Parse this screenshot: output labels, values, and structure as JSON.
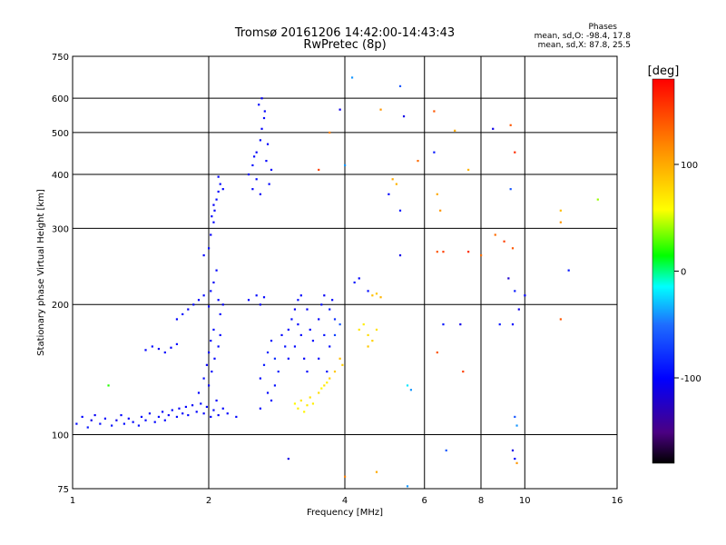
{
  "chart_data": {
    "type": "scatter",
    "title": "Tromsø 20161206 14:42:00-14:43:43",
    "subtitle": "RwPretec (8p)",
    "phase_stats": {
      "heading": "Phases",
      "line1": "mean, sd,O: -98.4, 17.8",
      "line2": "mean, sd,X:  87.8, 25.5"
    },
    "xlabel": "Frequency [MHz]",
    "ylabel": "Stationary phase Virtual Height [km]",
    "x_scale": "log",
    "y_scale": "log",
    "xlim": [
      1,
      16
    ],
    "ylim": [
      75,
      750
    ],
    "x_ticks": [
      1,
      2,
      4,
      6,
      8,
      10,
      16
    ],
    "y_ticks": [
      75,
      100,
      200,
      300,
      400,
      500,
      600,
      750
    ],
    "grid": true,
    "colorbar": {
      "label": "[deg]",
      "range": [
        -180,
        180
      ],
      "ticks": [
        100,
        0,
        -100
      ],
      "colormap": "rainbow"
    },
    "series": [
      {
        "points": [
          [
            1.02,
            106,
            -95
          ],
          [
            1.05,
            110,
            -100
          ],
          [
            1.08,
            104,
            -90
          ],
          [
            1.1,
            108,
            -110
          ],
          [
            1.12,
            111,
            -105
          ],
          [
            1.15,
            106,
            -95
          ],
          [
            1.18,
            109,
            -100
          ],
          [
            1.22,
            105,
            -92
          ],
          [
            1.25,
            108,
            -108
          ],
          [
            1.28,
            111,
            -100
          ],
          [
            1.3,
            106,
            -96
          ],
          [
            1.33,
            109,
            -103
          ],
          [
            1.36,
            107,
            -99
          ],
          [
            1.4,
            105,
            -94
          ],
          [
            1.42,
            110,
            -101
          ],
          [
            1.45,
            108,
            -97
          ],
          [
            1.48,
            112,
            -105
          ],
          [
            1.52,
            107,
            -100
          ],
          [
            1.55,
            110,
            -96
          ],
          [
            1.58,
            113,
            -102
          ],
          [
            1.6,
            108,
            -98
          ],
          [
            1.63,
            111,
            -104
          ],
          [
            1.66,
            114,
            -100
          ],
          [
            1.7,
            110,
            -95
          ],
          [
            1.72,
            115,
            -103
          ],
          [
            1.75,
            112,
            -99
          ],
          [
            1.78,
            116,
            -101
          ],
          [
            1.8,
            111,
            -97
          ],
          [
            1.84,
            117,
            -104
          ],
          [
            1.88,
            113,
            -100
          ],
          [
            1.92,
            118,
            -96
          ],
          [
            1.95,
            112,
            -102
          ],
          [
            1.98,
            116,
            -99
          ],
          [
            2.02,
            110,
            -101
          ],
          [
            2.05,
            114,
            -97
          ],
          [
            2.1,
            111,
            -103
          ],
          [
            2.15,
            115,
            -99
          ],
          [
            2.2,
            112,
            -100
          ],
          [
            2.3,
            110,
            -98
          ],
          [
            1.45,
            157,
            -100
          ],
          [
            1.5,
            160,
            -95
          ],
          [
            1.55,
            158,
            -105
          ],
          [
            1.6,
            155,
            -98
          ],
          [
            1.65,
            159,
            -102
          ],
          [
            1.7,
            162,
            -97
          ],
          [
            1.7,
            185,
            -100
          ],
          [
            1.75,
            190,
            -95
          ],
          [
            1.8,
            195,
            -105
          ],
          [
            1.85,
            200,
            -98
          ],
          [
            1.9,
            205,
            -102
          ],
          [
            1.95,
            210,
            -97
          ],
          [
            2.0,
            198,
            -101
          ],
          [
            2.02,
            215,
            -96
          ],
          [
            2.05,
            225,
            -104
          ],
          [
            2.08,
            240,
            -99
          ],
          [
            2.1,
            205,
            -100
          ],
          [
            2.12,
            190,
            -97
          ],
          [
            2.15,
            200,
            -103
          ],
          [
            1.9,
            125,
            -100
          ],
          [
            1.95,
            135,
            -96
          ],
          [
            1.98,
            145,
            -104
          ],
          [
            2.0,
            155,
            -99
          ],
          [
            2.02,
            165,
            -101
          ],
          [
            2.05,
            175,
            -97
          ],
          [
            2.0,
            130,
            -102
          ],
          [
            2.03,
            140,
            -98
          ],
          [
            2.06,
            150,
            -100
          ],
          [
            2.1,
            160,
            -96
          ],
          [
            2.08,
            120,
            -103
          ],
          [
            2.12,
            170,
            -99
          ],
          [
            1.95,
            260,
            -100
          ],
          [
            2.0,
            270,
            -95
          ],
          [
            2.02,
            290,
            -105
          ],
          [
            2.05,
            310,
            -98
          ],
          [
            2.06,
            330,
            -102
          ],
          [
            2.08,
            350,
            -97
          ],
          [
            2.1,
            365,
            -101
          ],
          [
            2.12,
            380,
            -96
          ],
          [
            2.05,
            340,
            -104
          ],
          [
            2.1,
            395,
            -99
          ],
          [
            2.15,
            370,
            -100
          ],
          [
            2.03,
            320,
            -98
          ],
          [
            2.45,
            400,
            -100
          ],
          [
            2.5,
            420,
            -95
          ],
          [
            2.55,
            450,
            -105
          ],
          [
            2.6,
            480,
            -98
          ],
          [
            2.62,
            510,
            -102
          ],
          [
            2.65,
            540,
            -97
          ],
          [
            2.5,
            370,
            -101
          ],
          [
            2.55,
            390,
            -96
          ],
          [
            2.6,
            360,
            -104
          ],
          [
            2.68,
            430,
            -99
          ],
          [
            2.7,
            470,
            -100
          ],
          [
            2.58,
            580,
            -97
          ],
          [
            2.62,
            600,
            -103
          ],
          [
            2.72,
            380,
            -99
          ],
          [
            2.75,
            410,
            -100
          ],
          [
            2.52,
            440,
            -96
          ],
          [
            2.66,
            560,
            -102
          ],
          [
            2.45,
            205,
            -100
          ],
          [
            2.55,
            210,
            -96
          ],
          [
            2.6,
            200,
            -104
          ],
          [
            2.65,
            208,
            -99
          ],
          [
            2.6,
            135,
            -100
          ],
          [
            2.65,
            145,
            -90
          ],
          [
            2.7,
            155,
            -85
          ],
          [
            2.75,
            165,
            -95
          ],
          [
            2.8,
            150,
            -80
          ],
          [
            2.7,
            125,
            -98
          ],
          [
            2.85,
            140,
            -88
          ],
          [
            2.9,
            170,
            -100
          ],
          [
            2.75,
            120,
            -96
          ],
          [
            2.95,
            160,
            -92
          ],
          [
            3.0,
            150,
            -97
          ],
          [
            2.6,
            115,
            -100
          ],
          [
            2.8,
            130,
            -94
          ],
          [
            3.0,
            175,
            -100
          ],
          [
            3.05,
            185,
            -96
          ],
          [
            3.1,
            195,
            -104
          ],
          [
            3.15,
            180,
            -99
          ],
          [
            3.2,
            170,
            -101
          ],
          [
            3.1,
            160,
            -97
          ],
          [
            3.25,
            150,
            -103
          ],
          [
            3.3,
            140,
            -99
          ],
          [
            3.2,
            210,
            -100
          ],
          [
            3.15,
            205,
            -96
          ],
          [
            3.3,
            195,
            -102
          ],
          [
            3.35,
            175,
            -98
          ],
          [
            3.4,
            165,
            -100
          ],
          [
            3.5,
            185,
            -100
          ],
          [
            3.55,
            200,
            -96
          ],
          [
            3.6,
            210,
            -104
          ],
          [
            3.7,
            195,
            -90
          ],
          [
            3.8,
            185,
            -80
          ],
          [
            3.6,
            170,
            -92
          ],
          [
            3.7,
            160,
            -95
          ],
          [
            3.5,
            150,
            -98
          ],
          [
            3.65,
            140,
            -94
          ],
          [
            3.8,
            170,
            -70
          ],
          [
            3.9,
            180,
            -60
          ],
          [
            3.75,
            205,
            -100
          ],
          [
            3.1,
            118,
            60
          ],
          [
            3.15,
            115,
            65
          ],
          [
            3.2,
            120,
            70
          ],
          [
            3.25,
            113,
            62
          ],
          [
            3.3,
            117,
            68
          ],
          [
            3.35,
            122,
            72
          ],
          [
            3.4,
            118,
            66
          ],
          [
            3.5,
            125,
            75
          ],
          [
            3.6,
            130,
            70
          ],
          [
            3.7,
            135,
            80
          ],
          [
            3.8,
            140,
            85
          ],
          [
            3.9,
            150,
            90
          ],
          [
            3.95,
            145,
            82
          ],
          [
            3.55,
            128,
            60
          ],
          [
            3.65,
            132,
            65
          ],
          [
            4.3,
            175,
            70
          ],
          [
            4.4,
            180,
            65
          ],
          [
            4.5,
            170,
            75
          ],
          [
            4.6,
            165,
            80
          ],
          [
            4.5,
            160,
            85
          ],
          [
            4.7,
            175,
            72
          ],
          [
            4.2,
            225,
            -90
          ],
          [
            4.3,
            230,
            -100
          ],
          [
            4.5,
            215,
            -95
          ],
          [
            4.6,
            210,
            90
          ],
          [
            4.7,
            212,
            85
          ],
          [
            4.8,
            208,
            95
          ],
          [
            3.9,
            565,
            -110
          ],
          [
            3.7,
            500,
            120
          ],
          [
            3.5,
            410,
            150
          ],
          [
            4.0,
            420,
            -40
          ],
          [
            4.15,
            670,
            -40
          ],
          [
            4.8,
            565,
            110
          ],
          [
            5.4,
            545,
            -110
          ],
          [
            5.3,
            640,
            -60
          ],
          [
            5.0,
            360,
            -100
          ],
          [
            5.3,
            330,
            -90
          ],
          [
            5.1,
            390,
            100
          ],
          [
            5.2,
            380,
            95
          ],
          [
            5.3,
            260,
            -110
          ],
          [
            5.8,
            430,
            130
          ],
          [
            6.3,
            560,
            140
          ],
          [
            6.3,
            450,
            -90
          ],
          [
            6.4,
            360,
            100
          ],
          [
            6.5,
            330,
            110
          ],
          [
            6.4,
            265,
            140
          ],
          [
            6.6,
            265,
            150
          ],
          [
            7.0,
            505,
            100
          ],
          [
            7.5,
            410,
            95
          ],
          [
            7.5,
            265,
            160
          ],
          [
            8.0,
            260,
            130
          ],
          [
            8.5,
            510,
            -110
          ],
          [
            9.3,
            520,
            140
          ],
          [
            9.5,
            450,
            160
          ],
          [
            9.3,
            370,
            -60
          ],
          [
            8.6,
            290,
            130
          ],
          [
            9.0,
            280,
            150
          ],
          [
            9.4,
            270,
            140
          ],
          [
            9.2,
            230,
            -120
          ],
          [
            9.5,
            215,
            -90
          ],
          [
            9.7,
            195,
            -110
          ],
          [
            10.0,
            210,
            -100
          ],
          [
            9.4,
            180,
            -100
          ],
          [
            8.8,
            180,
            -90
          ],
          [
            7.2,
            180,
            -110
          ],
          [
            6.6,
            180,
            -90
          ],
          [
            6.4,
            155,
            140
          ],
          [
            7.3,
            140,
            150
          ],
          [
            9.5,
            110,
            -60
          ],
          [
            9.6,
            105,
            -40
          ],
          [
            9.4,
            92,
            -110
          ],
          [
            9.5,
            88,
            -100
          ],
          [
            9.6,
            86,
            110
          ],
          [
            6.7,
            92,
            -60
          ],
          [
            3.0,
            88,
            -110
          ],
          [
            4.0,
            80,
            120
          ],
          [
            4.7,
            82,
            100
          ],
          [
            5.5,
            76,
            -40
          ],
          [
            12.0,
            330,
            90
          ],
          [
            12.0,
            310,
            110
          ],
          [
            12.0,
            185,
            140
          ],
          [
            12.5,
            240,
            -90
          ],
          [
            14.5,
            350,
            40
          ],
          [
            1.2,
            130,
            20
          ],
          [
            5.5,
            130,
            -20
          ],
          [
            5.6,
            127,
            -40
          ]
        ]
      }
    ]
  }
}
